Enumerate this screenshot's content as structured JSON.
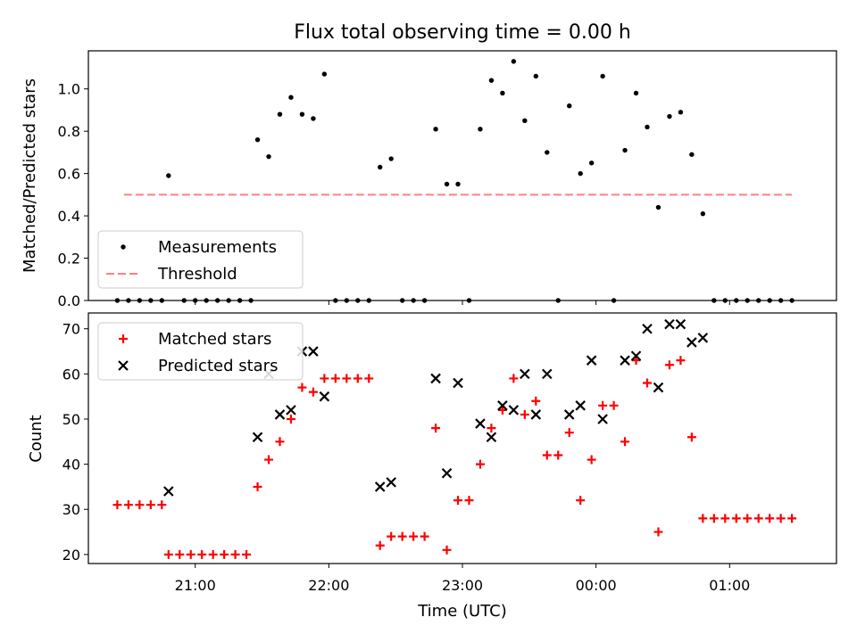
{
  "chart_data": [
    {
      "type": "scatter",
      "title": "Flux total observing time = 0.00 h",
      "xlabel": "",
      "ylabel": "Matched/Predicted stars",
      "ylim": [
        0,
        1.18
      ],
      "yticks": [
        0.0,
        0.2,
        0.4,
        0.6,
        0.8,
        1.0
      ],
      "ytick_labels": [
        "0.0",
        "0.2",
        "0.4",
        "0.6",
        "0.8",
        "1.0"
      ],
      "xlim": [
        "20:12",
        "01:48"
      ],
      "legend_position": "lower-left",
      "series": [
        {
          "name": "Measurements",
          "marker": "dot",
          "color": "#000000",
          "points": [
            [
              "20:25",
              0
            ],
            [
              "20:30",
              0
            ],
            [
              "20:35",
              0
            ],
            [
              "20:40",
              0
            ],
            [
              "20:45",
              0
            ],
            [
              "20:48",
              0.59
            ],
            [
              "20:55",
              0
            ],
            [
              "21:00",
              0
            ],
            [
              "21:05",
              0
            ],
            [
              "21:10",
              0
            ],
            [
              "21:15",
              0
            ],
            [
              "21:20",
              0
            ],
            [
              "21:25",
              0
            ],
            [
              "21:28",
              0.76
            ],
            [
              "21:33",
              0.68
            ],
            [
              "21:38",
              0.88
            ],
            [
              "21:43",
              0.96
            ],
            [
              "21:48",
              0.88
            ],
            [
              "21:53",
              0.86
            ],
            [
              "21:58",
              1.07
            ],
            [
              "22:03",
              0
            ],
            [
              "22:08",
              0
            ],
            [
              "22:13",
              0
            ],
            [
              "22:18",
              0
            ],
            [
              "22:23",
              0.63
            ],
            [
              "22:28",
              0.67
            ],
            [
              "22:33",
              0
            ],
            [
              "22:38",
              0
            ],
            [
              "22:43",
              0
            ],
            [
              "22:48",
              0.81
            ],
            [
              "22:53",
              0.55
            ],
            [
              "22:58",
              0.55
            ],
            [
              "23:03",
              0
            ],
            [
              "23:08",
              0.81
            ],
            [
              "23:13",
              1.04
            ],
            [
              "23:18",
              0.98
            ],
            [
              "23:23",
              1.13
            ],
            [
              "23:28",
              0.85
            ],
            [
              "23:33",
              1.06
            ],
            [
              "23:38",
              0.7
            ],
            [
              "23:43",
              0
            ],
            [
              "23:48",
              0.92
            ],
            [
              "23:53",
              0.6
            ],
            [
              "23:58",
              0.65
            ],
            [
              "00:03",
              1.06
            ],
            [
              "00:08",
              0
            ],
            [
              "00:13",
              0.71
            ],
            [
              "00:18",
              0.98
            ],
            [
              "00:23",
              0.82
            ],
            [
              "00:28",
              0.44
            ],
            [
              "00:33",
              0.87
            ],
            [
              "00:38",
              0.89
            ],
            [
              "00:43",
              0.69
            ],
            [
              "00:48",
              0.41
            ],
            [
              "00:53",
              0
            ],
            [
              "00:58",
              0
            ],
            [
              "01:03",
              0
            ],
            [
              "01:08",
              0
            ],
            [
              "01:13",
              0
            ],
            [
              "01:18",
              0
            ],
            [
              "01:23",
              0
            ],
            [
              "01:28",
              0
            ]
          ]
        },
        {
          "name": "Threshold",
          "type": "line",
          "style": "dashed",
          "color": "#ff7f7f",
          "points": [
            [
              "20:28",
              0.5
            ],
            [
              "01:28",
              0.5
            ]
          ]
        }
      ]
    },
    {
      "type": "scatter",
      "title": "",
      "xlabel": "Time (UTC)",
      "ylabel": "Count",
      "ylim": [
        18,
        73.5
      ],
      "yticks": [
        20,
        30,
        40,
        50,
        60,
        70
      ],
      "ytick_labels": [
        "20",
        "30",
        "40",
        "50",
        "60",
        "70"
      ],
      "xlim": [
        "20:12",
        "01:48"
      ],
      "xticks": [
        "21:00",
        "22:00",
        "23:00",
        "00:00",
        "01:00"
      ],
      "xtick_labels": [
        "21:00",
        "22:00",
        "23:00",
        "00:00",
        "01:00"
      ],
      "legend_position": "top-left",
      "series": [
        {
          "name": "Matched stars",
          "marker": "plus",
          "color": "#ff0000",
          "points": [
            [
              "20:25",
              31
            ],
            [
              "20:30",
              31
            ],
            [
              "20:35",
              31
            ],
            [
              "20:40",
              31
            ],
            [
              "20:45",
              31
            ],
            [
              "20:48",
              20
            ],
            [
              "20:53",
              20
            ],
            [
              "20:58",
              20
            ],
            [
              "21:03",
              20
            ],
            [
              "21:08",
              20
            ],
            [
              "21:13",
              20
            ],
            [
              "21:18",
              20
            ],
            [
              "21:23",
              20
            ],
            [
              "21:28",
              35
            ],
            [
              "21:33",
              41
            ],
            [
              "21:38",
              45
            ],
            [
              "21:43",
              50
            ],
            [
              "21:48",
              57
            ],
            [
              "21:53",
              56
            ],
            [
              "21:58",
              59
            ],
            [
              "22:03",
              59
            ],
            [
              "22:08",
              59
            ],
            [
              "22:13",
              59
            ],
            [
              "22:18",
              59
            ],
            [
              "22:23",
              22
            ],
            [
              "22:28",
              24
            ],
            [
              "22:33",
              24
            ],
            [
              "22:38",
              24
            ],
            [
              "22:43",
              24
            ],
            [
              "22:48",
              48
            ],
            [
              "22:53",
              21
            ],
            [
              "22:58",
              32
            ],
            [
              "23:03",
              32
            ],
            [
              "23:08",
              40
            ],
            [
              "23:13",
              48
            ],
            [
              "23:18",
              52
            ],
            [
              "23:23",
              59
            ],
            [
              "23:28",
              51
            ],
            [
              "23:33",
              54
            ],
            [
              "23:38",
              42
            ],
            [
              "23:43",
              42
            ],
            [
              "23:48",
              47
            ],
            [
              "23:53",
              32
            ],
            [
              "23:58",
              41
            ],
            [
              "00:03",
              53
            ],
            [
              "00:08",
              53
            ],
            [
              "00:13",
              45
            ],
            [
              "00:18",
              63
            ],
            [
              "00:23",
              58
            ],
            [
              "00:28",
              25
            ],
            [
              "00:33",
              62
            ],
            [
              "00:38",
              63
            ],
            [
              "00:43",
              46
            ],
            [
              "00:48",
              28
            ],
            [
              "00:53",
              28
            ],
            [
              "00:58",
              28
            ],
            [
              "01:03",
              28
            ],
            [
              "01:08",
              28
            ],
            [
              "01:13",
              28
            ],
            [
              "01:18",
              28
            ],
            [
              "01:23",
              28
            ],
            [
              "01:28",
              28
            ]
          ]
        },
        {
          "name": "Predicted stars",
          "marker": "x",
          "color": "#000000",
          "points": [
            [
              "20:48",
              34
            ],
            [
              "21:28",
              46
            ],
            [
              "21:33",
              60
            ],
            [
              "21:38",
              51
            ],
            [
              "21:43",
              52
            ],
            [
              "21:48",
              65
            ],
            [
              "21:53",
              65
            ],
            [
              "21:58",
              55
            ],
            [
              "22:23",
              35
            ],
            [
              "22:28",
              36
            ],
            [
              "22:48",
              59
            ],
            [
              "22:53",
              38
            ],
            [
              "22:58",
              58
            ],
            [
              "23:08",
              49
            ],
            [
              "23:13",
              46
            ],
            [
              "23:18",
              53
            ],
            [
              "23:23",
              52
            ],
            [
              "23:28",
              60
            ],
            [
              "23:33",
              51
            ],
            [
              "23:38",
              60
            ],
            [
              "23:48",
              51
            ],
            [
              "23:53",
              53
            ],
            [
              "23:58",
              63
            ],
            [
              "00:03",
              50
            ],
            [
              "00:13",
              63
            ],
            [
              "00:18",
              64
            ],
            [
              "00:23",
              70
            ],
            [
              "00:28",
              57
            ],
            [
              "00:33",
              71
            ],
            [
              "00:38",
              71
            ],
            [
              "00:43",
              67
            ],
            [
              "00:48",
              68
            ]
          ]
        }
      ]
    }
  ]
}
